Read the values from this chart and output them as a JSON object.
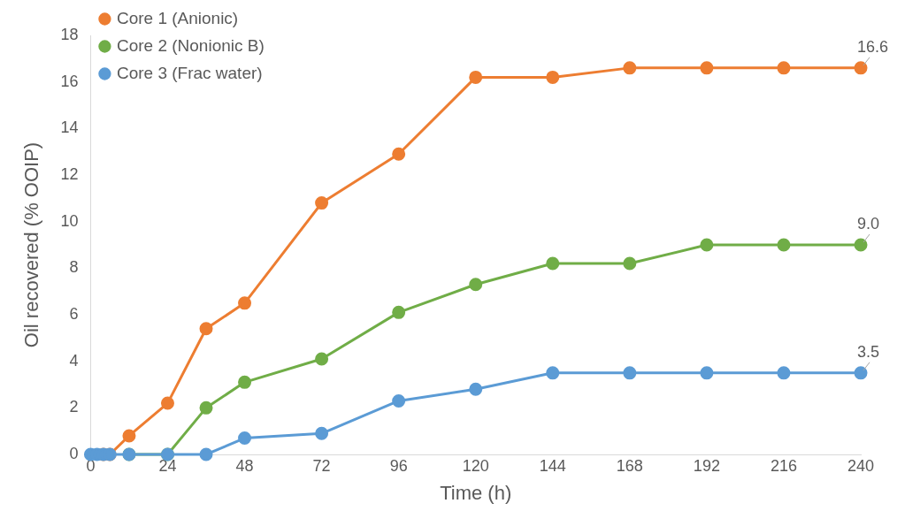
{
  "chart_data": {
    "type": "line",
    "xlabel": "Time (h)",
    "ylabel": "Oil recovered (% OOIP)",
    "x": [
      0,
      2,
      4,
      6,
      12,
      24,
      36,
      48,
      72,
      96,
      120,
      144,
      168,
      192,
      216,
      240
    ],
    "xlim": [
      0,
      240
    ],
    "xticks": [
      0,
      24,
      48,
      72,
      96,
      120,
      144,
      168,
      192,
      216,
      240
    ],
    "ylim": [
      0,
      18
    ],
    "yticks": [
      0,
      2,
      4,
      6,
      8,
      10,
      12,
      14,
      16,
      18
    ],
    "grid": false,
    "legend": "top left",
    "marker": "circle",
    "line_style": "solid",
    "series": [
      {
        "name": "Core 1 (Anionic)",
        "color": "#ed7d31",
        "values": [
          null,
          null,
          0,
          0,
          0.8,
          2.2,
          5.4,
          6.5,
          10.8,
          12.9,
          16.2,
          16.2,
          16.6,
          16.6,
          16.6,
          16.6
        ],
        "value_labels": [
          null,
          null,
          null,
          null,
          null,
          null,
          null,
          null,
          null,
          null,
          null,
          null,
          null,
          null,
          null,
          "16.6"
        ]
      },
      {
        "name": "Core 2 (Nonionic B)",
        "color": "#70ad47",
        "values": [
          null,
          null,
          null,
          null,
          0,
          0,
          2.0,
          3.1,
          4.1,
          6.1,
          7.3,
          8.2,
          8.2,
          9.0,
          9.0,
          9.0
        ],
        "value_labels": [
          null,
          null,
          null,
          null,
          null,
          null,
          null,
          null,
          null,
          null,
          null,
          null,
          null,
          null,
          null,
          "9.0"
        ]
      },
      {
        "name": "Core 3 (Frac water)",
        "color": "#5b9bd5",
        "values": [
          0,
          0,
          0,
          0,
          0,
          0,
          0,
          0.7,
          0.9,
          2.3,
          2.8,
          3.5,
          3.5,
          3.5,
          3.5,
          3.5
        ],
        "value_labels": [
          null,
          null,
          null,
          null,
          null,
          null,
          null,
          null,
          null,
          null,
          null,
          null,
          null,
          null,
          null,
          "3.5"
        ]
      }
    ]
  }
}
